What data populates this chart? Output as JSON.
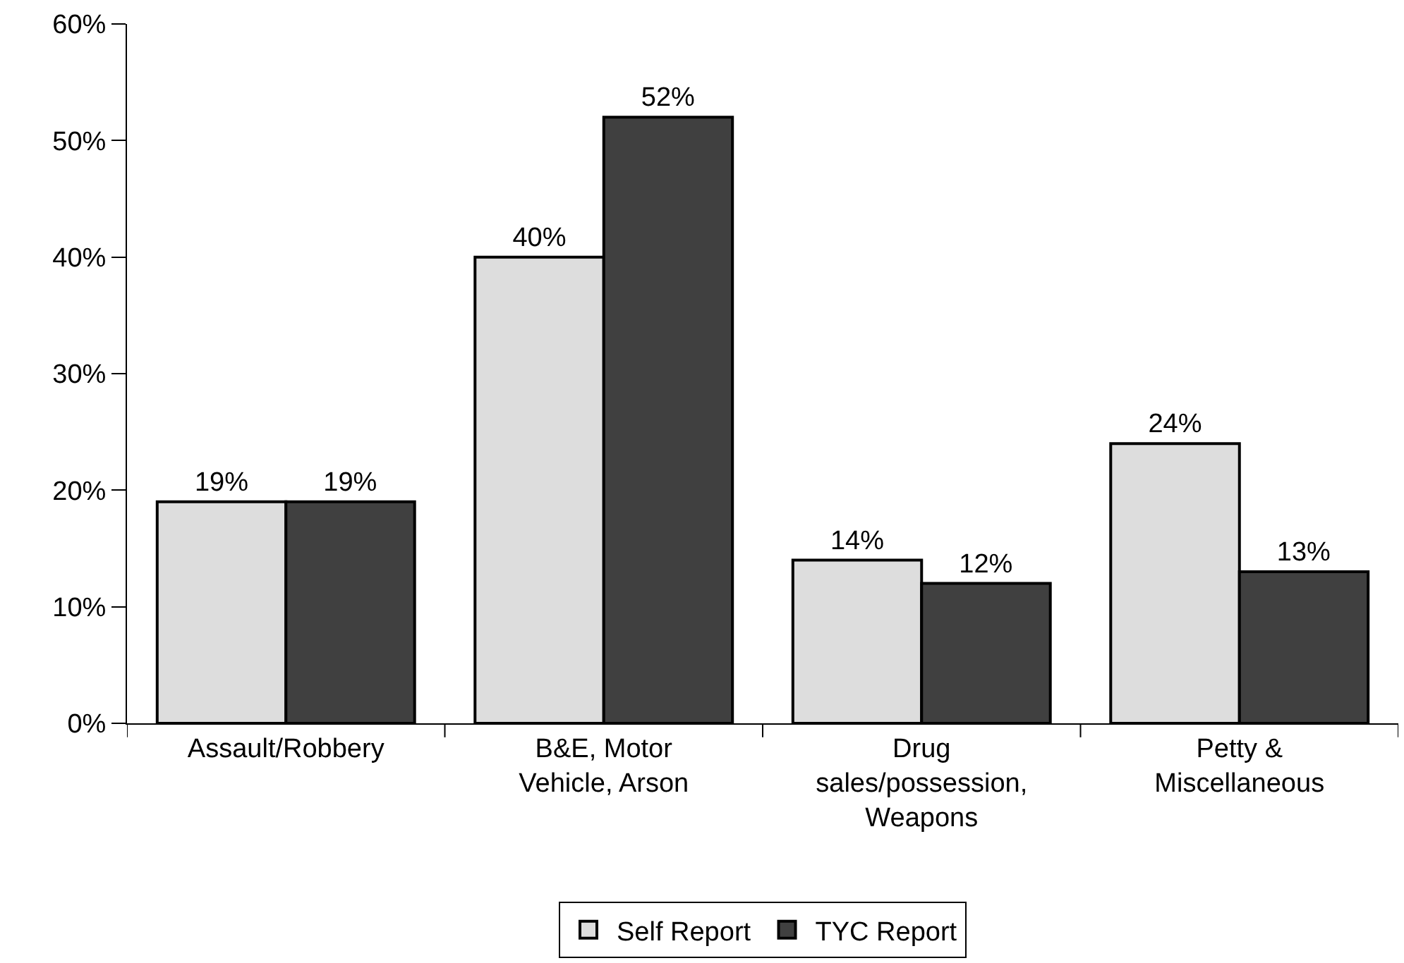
{
  "chart_data": {
    "type": "bar",
    "categories": [
      "Assault/Robbery",
      "B&E, Motor Vehicle, Arson",
      "Drug sales/possession, Weapons",
      "Petty & Miscellaneous"
    ],
    "series": [
      {
        "name": "Self Report",
        "color": "#dddddd",
        "values": [
          19,
          40,
          14,
          24
        ],
        "value_labels": [
          "19%",
          "40%",
          "14%",
          "24%"
        ]
      },
      {
        "name": "TYC Report",
        "color": "#404040",
        "values": [
          19,
          52,
          12,
          13
        ],
        "value_labels": [
          "19%",
          "52%",
          "12%",
          "13%"
        ]
      }
    ],
    "ylim": [
      0,
      60
    ],
    "yticks": [
      {
        "value": 0,
        "label": "0%"
      },
      {
        "value": 10,
        "label": "10%"
      },
      {
        "value": 20,
        "label": "20%"
      },
      {
        "value": 30,
        "label": "30%"
      },
      {
        "value": 40,
        "label": "40%"
      },
      {
        "value": 50,
        "label": "50%"
      },
      {
        "value": 60,
        "label": "60%"
      }
    ],
    "legend": "bottom"
  }
}
